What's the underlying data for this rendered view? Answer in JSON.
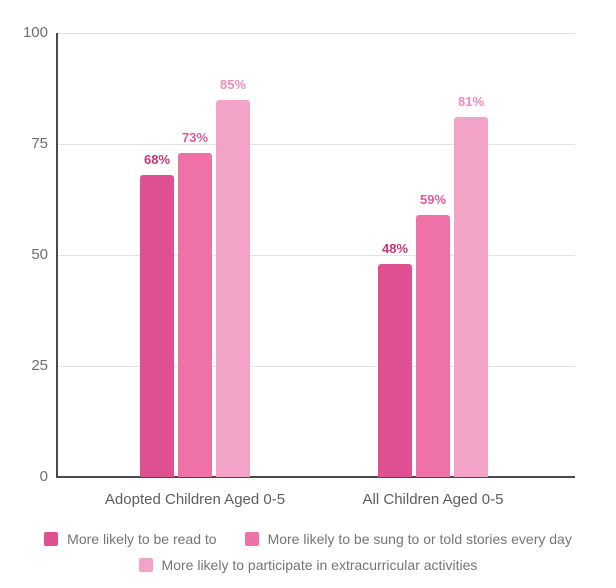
{
  "chart_data": {
    "type": "bar",
    "title": "",
    "xlabel": "",
    "ylabel": "",
    "categories": [
      "Adopted Children Aged 0-5",
      "All Children Aged 0-5"
    ],
    "series": [
      {
        "name": "More likely to be read to",
        "values": [
          68,
          48
        ],
        "labels": [
          "68%",
          "48%"
        ],
        "color": "#de5090",
        "label_color": "#c73677"
      },
      {
        "name": "More likely to be sung to or told stories every day",
        "values": [
          73,
          59
        ],
        "labels": [
          "73%",
          "59%"
        ],
        "color": "#ee72a8",
        "label_color": "#e25a9a"
      },
      {
        "name": "More likely to participate in extracurricular activities",
        "values": [
          85,
          81
        ],
        "labels": [
          "85%",
          "81%"
        ],
        "color": "#f3a3c8",
        "label_color": "#f08bb9"
      }
    ],
    "ylim": [
      0,
      100
    ],
    "y_ticks": [
      0,
      25,
      50,
      75,
      100
    ],
    "grid": true,
    "legend_position": "bottom"
  },
  "style": {
    "background": "#ffffff",
    "axis_color": "#4a4a4a",
    "gridline_color": "#e3e3e3",
    "tick_text_color": "#6f6f6f",
    "category_text_color": "#5e5e5e",
    "legend_text_color": "#757575"
  }
}
